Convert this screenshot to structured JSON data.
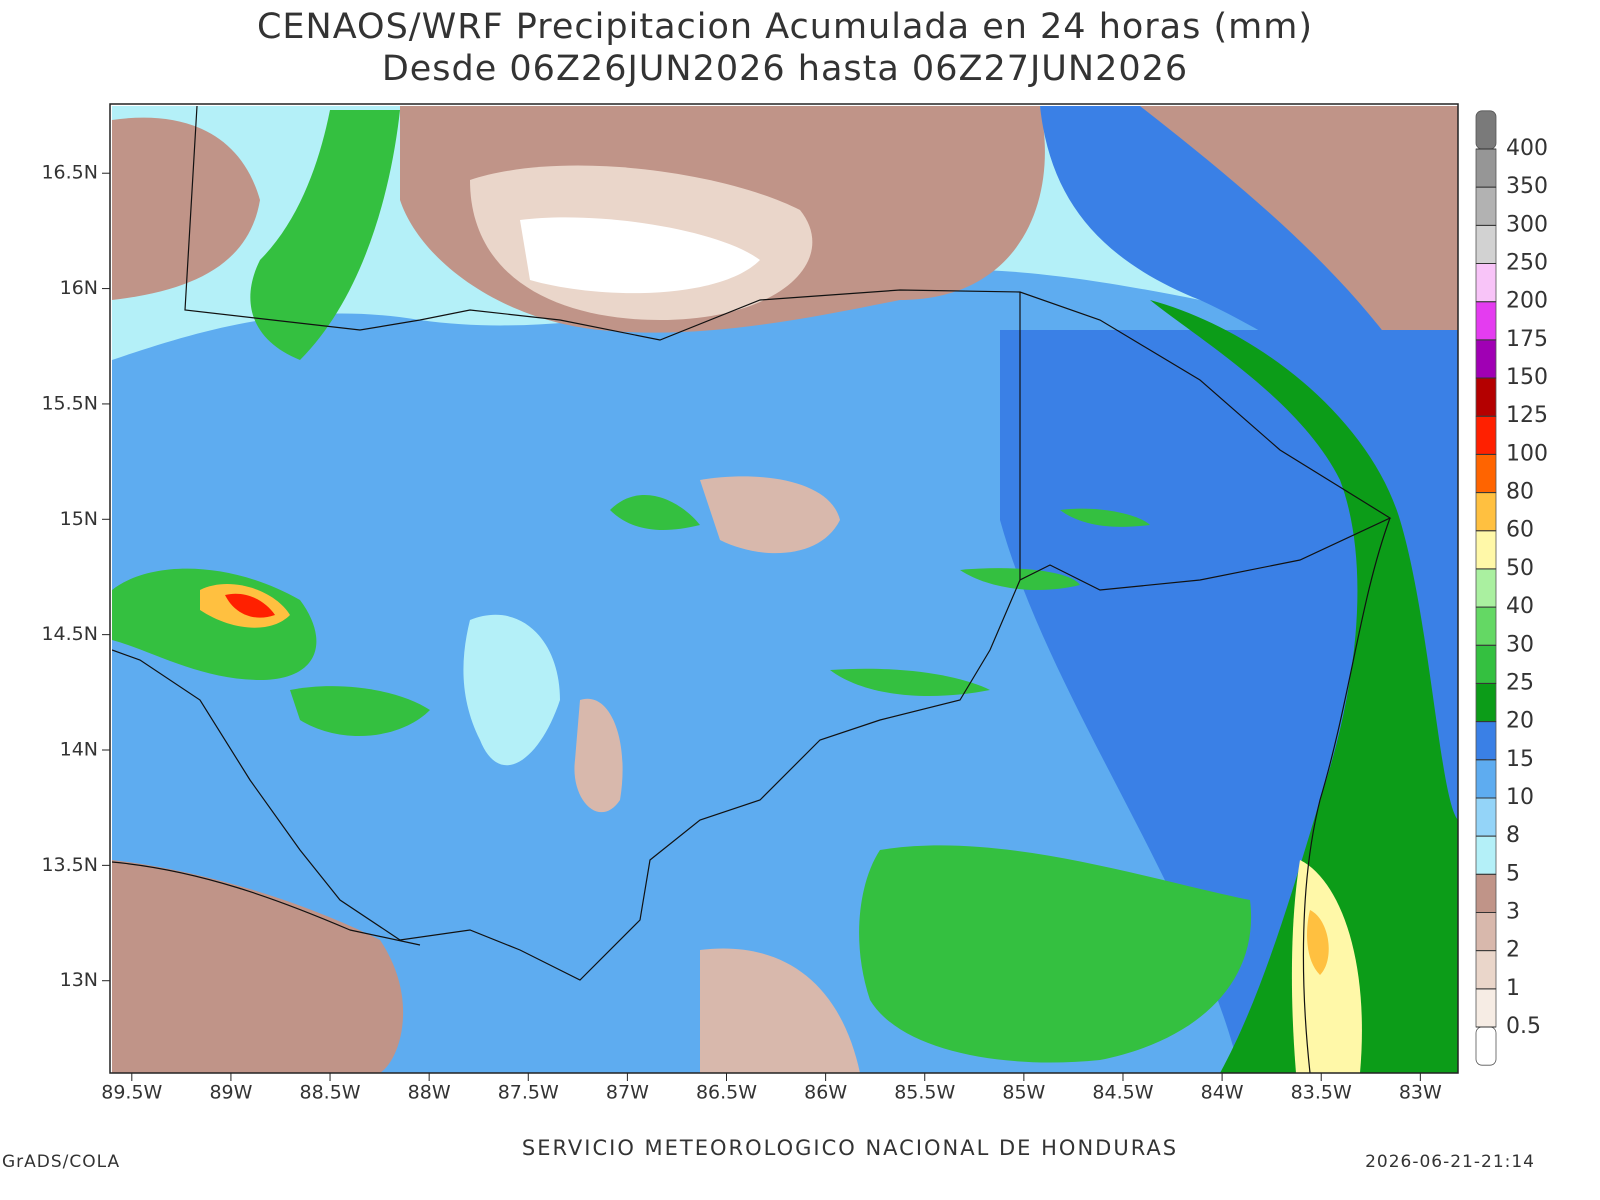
{
  "map": {
    "title": "CENAOS/WRF Precipitacion Acumulada en 24 horas (mm)",
    "subtitle": "Desde 06Z26JUN2026 hasta 06Z27JUN2026",
    "xlim": [
      -89.61,
      -82.81
    ],
    "ylim": [
      12.6,
      16.8
    ],
    "xticks": [
      {
        "value": -89.5,
        "label": "89.5W"
      },
      {
        "value": -89,
        "label": "89W"
      },
      {
        "value": -88.5,
        "label": "88.5W"
      },
      {
        "value": -88,
        "label": "88W"
      },
      {
        "value": -87.5,
        "label": "87.5W"
      },
      {
        "value": -87,
        "label": "87W"
      },
      {
        "value": -86.5,
        "label": "86.5W"
      },
      {
        "value": -86,
        "label": "86W"
      },
      {
        "value": -85.5,
        "label": "85.5W"
      },
      {
        "value": -85,
        "label": "85W"
      },
      {
        "value": -84.5,
        "label": "84.5W"
      },
      {
        "value": -84,
        "label": "84W"
      },
      {
        "value": -83.5,
        "label": "83.5W"
      },
      {
        "value": -83,
        "label": "83W"
      }
    ],
    "yticks": [
      {
        "value": 16.5,
        "label": "16.5N"
      },
      {
        "value": 16,
        "label": "16N"
      },
      {
        "value": 15.5,
        "label": "15.5N"
      },
      {
        "value": 15,
        "label": "15N"
      },
      {
        "value": 14.5,
        "label": "14.5N"
      },
      {
        "value": 14,
        "label": "14N"
      },
      {
        "value": 13.5,
        "label": "13.5N"
      },
      {
        "value": 13,
        "label": "13N"
      }
    ],
    "colorbar": {
      "levels": [
        0.5,
        1,
        2,
        3,
        5,
        8,
        10,
        15,
        20,
        25,
        30,
        40,
        50,
        60,
        80,
        100,
        125,
        150,
        175,
        200,
        250,
        300,
        350,
        400
      ],
      "colors": [
        "#ffffff",
        "#f6ece4",
        "#ead6ca",
        "#d8b8ac",
        "#c09488",
        "#b4f0f8",
        "#94d4f8",
        "#5eacf0",
        "#3a80e6",
        "#0c9c18",
        "#34c040",
        "#64d864",
        "#aaf0a0",
        "#fff8a8",
        "#ffc040",
        "#ff6400",
        "#ff2000",
        "#b40000",
        "#a000b4",
        "#e43cf0",
        "#f8c4f8",
        "#d2d2d2",
        "#b2b2b2",
        "#969696",
        "#7a7a7a"
      ]
    },
    "credit": "GrADS/COLA",
    "footer": "SERVICIO METEOROLOGICO NACIONAL DE HONDURAS",
    "timestamp": "2026-06-21-21:14"
  }
}
